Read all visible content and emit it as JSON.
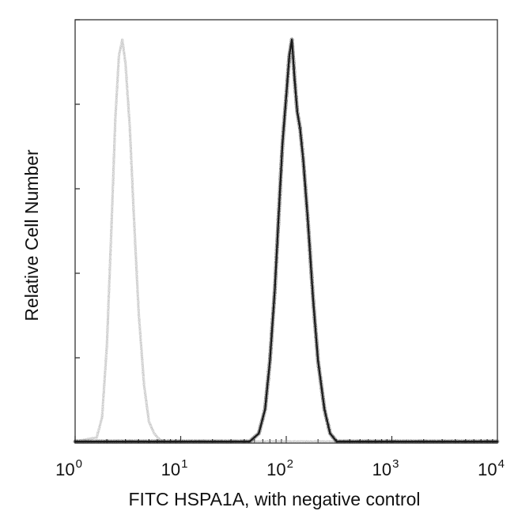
{
  "chart_data": {
    "type": "area",
    "title": "",
    "xlabel": "FITC HSPA1A, with negative control",
    "ylabel": "Relative Cell Number",
    "x_scale": "log",
    "xlim": [
      1,
      10000
    ],
    "ylim": [
      0,
      1
    ],
    "x_ticks": [
      {
        "value": 1,
        "base": "10",
        "exp": "0"
      },
      {
        "value": 10,
        "base": "10",
        "exp": "1"
      },
      {
        "value": 100,
        "base": "10",
        "exp": "2"
      },
      {
        "value": 1000,
        "base": "10",
        "exp": "3"
      },
      {
        "value": 10000,
        "base": "10",
        "exp": "4"
      }
    ],
    "y_tick_count": 5,
    "grid": false,
    "legend": "none",
    "series": [
      {
        "role": "negative control",
        "color": "#9a9a9a",
        "style": "thin dotted",
        "x": [
          1.6,
          1.8,
          2.0,
          2.2,
          2.4,
          2.6,
          2.8,
          3.0,
          3.3,
          3.6,
          4.0,
          4.5,
          5.0,
          5.6,
          6.3,
          7.0
        ],
        "y": [
          0.01,
          0.06,
          0.24,
          0.52,
          0.8,
          0.96,
          1.0,
          0.94,
          0.78,
          0.56,
          0.32,
          0.14,
          0.05,
          0.02,
          0.005,
          0.0
        ]
      },
      {
        "role": "FITC HSPA1A",
        "color": "#1a1a1a",
        "style": "thick",
        "x": [
          45,
          55,
          63,
          70,
          78,
          85,
          92,
          100,
          107,
          113,
          120,
          127,
          135,
          145,
          160,
          180,
          200,
          230,
          260,
          300
        ],
        "y": [
          0.0,
          0.02,
          0.08,
          0.2,
          0.38,
          0.57,
          0.74,
          0.86,
          0.96,
          1.0,
          0.9,
          0.82,
          0.78,
          0.7,
          0.55,
          0.35,
          0.2,
          0.08,
          0.02,
          0.0
        ]
      }
    ]
  }
}
